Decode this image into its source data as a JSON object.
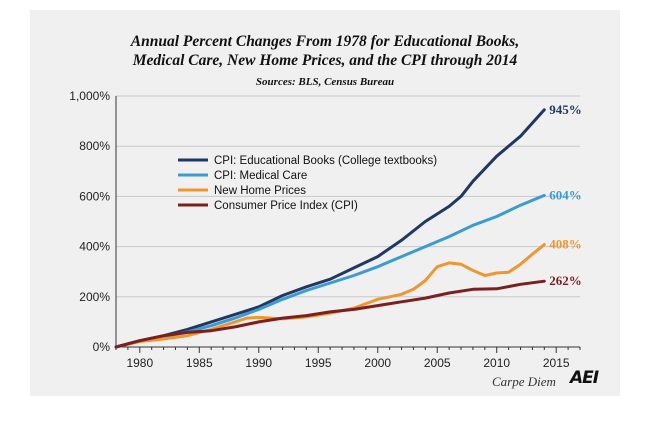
{
  "chart_data": {
    "type": "line",
    "title_line1": "Annual Percent Changes From 1978 for Educational Books,",
    "title_line2": "Medical Care, New Home Prices, and the CPI through 2014",
    "subtitle": "Sources: BLS, Census Bureau",
    "xlabel": "",
    "ylabel": "",
    "xlim": [
      1978,
      2017
    ],
    "ylim": [
      0,
      1000
    ],
    "x_ticks": [
      1980,
      1985,
      1990,
      1995,
      2000,
      2005,
      2010,
      2015
    ],
    "y_ticks": [
      0,
      200,
      400,
      600,
      800,
      1000
    ],
    "y_tick_labels": [
      "0%",
      "200%",
      "400%",
      "600%",
      "800%",
      "1,000%"
    ],
    "grid": "horizontal",
    "legend_position": "upper-left-inside",
    "series": [
      {
        "name": "CPI: Educational Books  (College textbooks)",
        "color": "#1f3864",
        "end_label": "945%",
        "x": [
          1978,
          1980,
          1982,
          1984,
          1986,
          1988,
          1990,
          1992,
          1994,
          1996,
          1998,
          2000,
          2002,
          2004,
          2006,
          2007,
          2008,
          2010,
          2012,
          2014
        ],
        "y": [
          0,
          25,
          45,
          70,
          100,
          130,
          160,
          205,
          240,
          270,
          315,
          360,
          425,
          500,
          560,
          600,
          660,
          760,
          840,
          945
        ]
      },
      {
        "name": "CPI: Medical Care",
        "color": "#3a9bd5",
        "end_label": "604%",
        "x": [
          1978,
          1980,
          1982,
          1984,
          1986,
          1988,
          1990,
          1992,
          1994,
          1996,
          1998,
          2000,
          2002,
          2004,
          2006,
          2008,
          2010,
          2012,
          2014
        ],
        "y": [
          0,
          23,
          40,
          60,
          85,
          115,
          150,
          190,
          225,
          255,
          285,
          320,
          360,
          400,
          440,
          485,
          520,
          565,
          604
        ]
      },
      {
        "name": "New Home Prices",
        "color": "#f0962e",
        "end_label": "408%",
        "x": [
          1978,
          1980,
          1982,
          1984,
          1986,
          1988,
          1989,
          1990,
          1992,
          1994,
          1996,
          1998,
          2000,
          2002,
          2003,
          2004,
          2005,
          2006,
          2007,
          2008,
          2009,
          2010,
          2011,
          2012,
          2013,
          2014
        ],
        "y": [
          0,
          22,
          32,
          45,
          70,
          100,
          115,
          118,
          112,
          120,
          135,
          155,
          190,
          210,
          230,
          265,
          320,
          335,
          330,
          305,
          285,
          295,
          298,
          330,
          370,
          408
        ]
      },
      {
        "name": "Consumer Price Index (CPI)",
        "color": "#7b1f1f",
        "end_label": "262%",
        "x": [
          1978,
          1980,
          1982,
          1984,
          1986,
          1988,
          1990,
          1992,
          1994,
          1996,
          1998,
          2000,
          2002,
          2004,
          2006,
          2008,
          2010,
          2012,
          2014
        ],
        "y": [
          0,
          25,
          45,
          58,
          65,
          80,
          100,
          115,
          125,
          140,
          150,
          165,
          180,
          195,
          215,
          230,
          232,
          250,
          262
        ]
      }
    ]
  },
  "footer": {
    "caption": "Carpe Diem",
    "logo_text": "AEI"
  }
}
